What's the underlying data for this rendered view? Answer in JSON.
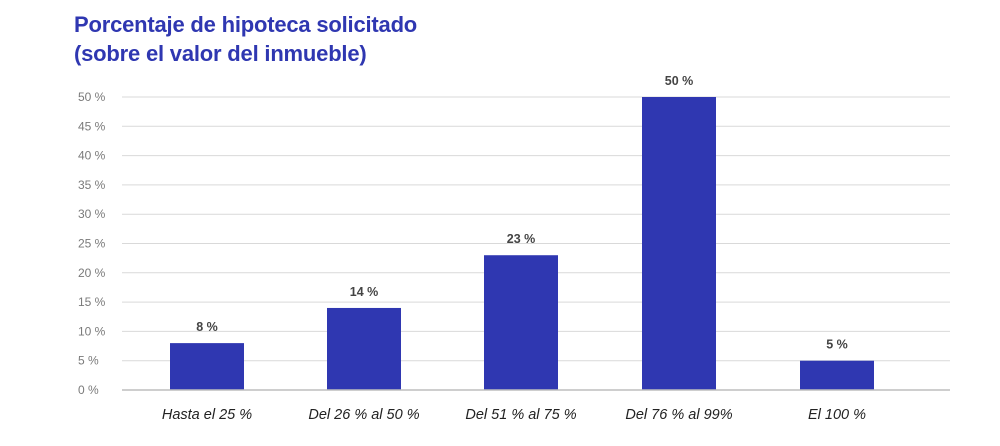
{
  "title_line1": "Porcentaje de hipoteca solicitado",
  "title_line2": "(sobre el valor del inmueble)",
  "colors": {
    "title": "#2f37b1",
    "bar": "#2f37b1",
    "grid": "#d9d9d9",
    "axis": "#bdbdbd"
  },
  "chart_data": {
    "type": "bar",
    "title": "Porcentaje de hipoteca solicitado (sobre el valor del inmueble)",
    "categories": [
      "Hasta el 25 %",
      "Del 26 % al 50 %",
      "Del 51 % al 75 %",
      "Del 76 % al 99%",
      "El 100 %"
    ],
    "values": [
      8,
      14,
      23,
      50,
      5
    ],
    "data_labels": [
      "8 %",
      "14 %",
      "23 %",
      "50 %",
      "5 %"
    ],
    "ylim": [
      0,
      50
    ],
    "yticks": [
      0,
      5,
      10,
      15,
      20,
      25,
      30,
      35,
      40,
      45,
      50
    ],
    "ytick_labels": [
      "0 %",
      "5 %",
      "10 %",
      "15 %",
      "20 %",
      "25 %",
      "30 %",
      "35 %",
      "40 %",
      "45 %",
      "50 %"
    ],
    "grid": true,
    "xlabel": "",
    "ylabel": ""
  }
}
